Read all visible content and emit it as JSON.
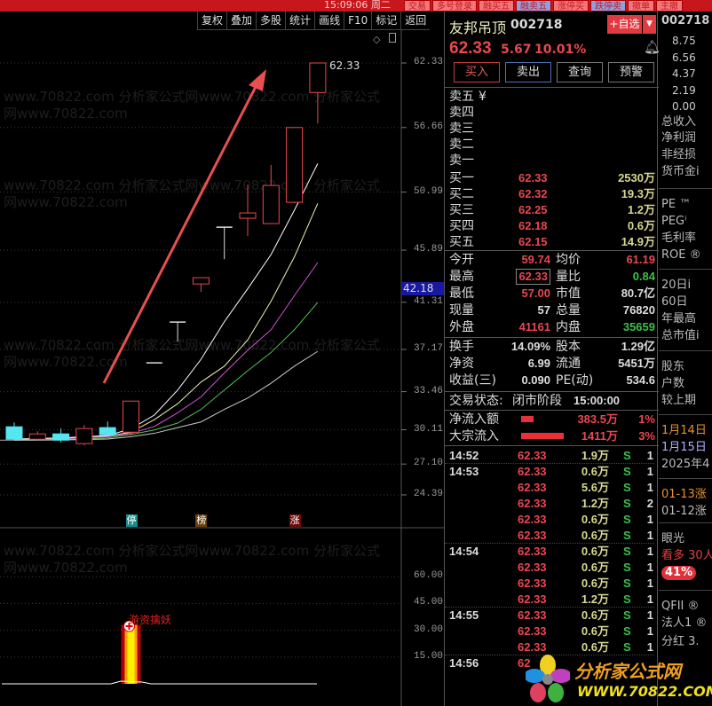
{
  "topbar": {
    "time": "15:09:06 周二",
    "tabs": [
      "交易",
      "多号登录",
      "融买五",
      "融卖五",
      "涨停买",
      "跌停卖",
      "撤单",
      "主撤"
    ]
  },
  "toolbar": [
    "复权",
    "叠加",
    "多股",
    "统计",
    "画线",
    "F10",
    "标记",
    "返回"
  ],
  "watermark": "www.70822.com 分析家公式网www.70822.com 分析家公式网www.70822.com",
  "colors": {
    "up": "#e8484f",
    "down": "#55e6f0",
    "background": "#000000",
    "arrow": "#e85050"
  },
  "chart_data": {
    "type": "candlestick",
    "price_axis_ticks": [
      "62.33",
      "56.66",
      "50.99",
      "45.89",
      "41.31",
      "37.17",
      "33.46",
      "30.11",
      "27.10",
      "24.39"
    ],
    "ylim": [
      24.39,
      62.33
    ],
    "current_price_tag": "42.18",
    "last_price_label": "62.33",
    "candles": [
      {
        "o": 30.37,
        "h": 30.76,
        "l": 29.2,
        "c": 29.28
      },
      {
        "o": 29.28,
        "h": 29.98,
        "l": 29.13,
        "c": 29.75
      },
      {
        "o": 29.75,
        "h": 30.22,
        "l": 29.0,
        "c": 29.2
      },
      {
        "o": 28.9,
        "h": 30.53,
        "l": 28.74,
        "c": 30.22
      },
      {
        "o": 30.3,
        "h": 30.84,
        "l": 29.5,
        "c": 29.67
      },
      {
        "o": 29.9,
        "h": 32.63,
        "l": 29.6,
        "c": 32.63
      },
      {
        "o": 35.99,
        "h": 35.99,
        "l": 35.99,
        "c": 35.99
      },
      {
        "o": 39.57,
        "h": 39.57,
        "l": 37.86,
        "c": 39.57
      },
      {
        "o": 42.92,
        "h": 43.47,
        "l": 42.22,
        "c": 43.47
      },
      {
        "o": 47.91,
        "h": 47.91,
        "l": 45.1,
        "c": 47.91
      },
      {
        "o": 48.69,
        "h": 51.65,
        "l": 47.13,
        "c": 49.16
      },
      {
        "o": 48.22,
        "h": 53.37,
        "l": 48.22,
        "c": 51.57
      },
      {
        "o": 50.09,
        "h": 56.66,
        "l": 50.0,
        "c": 56.66
      },
      {
        "o": 59.74,
        "h": 62.33,
        "l": 57.0,
        "c": 62.33
      }
    ],
    "ma_series": [
      {
        "color": "#ffffff",
        "values": [
          29.3,
          29.35,
          29.4,
          29.5,
          29.6,
          30.2,
          31.4,
          33.6,
          36.3,
          39.6,
          42.5,
          45.5,
          49.4,
          53.5
        ]
      },
      {
        "color": "#f0f0b0",
        "values": [
          29.25,
          29.3,
          29.35,
          29.45,
          29.55,
          29.9,
          31.0,
          32.4,
          34.3,
          35.7,
          38.0,
          41.4,
          45.3,
          50.0
        ]
      },
      {
        "color": "#d050d0",
        "values": [
          29.2,
          29.25,
          29.3,
          29.4,
          29.5,
          29.8,
          30.4,
          31.6,
          33.0,
          35.1,
          37.1,
          38.9,
          41.9,
          44.8
        ]
      },
      {
        "color": "#50c050",
        "values": [
          29.2,
          29.22,
          29.25,
          29.3,
          29.4,
          29.7,
          30.1,
          30.7,
          31.9,
          33.6,
          35.3,
          36.9,
          38.9,
          41.3
        ]
      },
      {
        "color": "#c8c8c8",
        "values": [
          29.2,
          29.2,
          29.22,
          29.25,
          29.3,
          29.5,
          29.8,
          30.3,
          30.8,
          31.9,
          32.9,
          34.2,
          35.7,
          37.0
        ]
      }
    ],
    "markers": [
      {
        "index": 5,
        "text": "停",
        "color": "#1a8a8a"
      },
      {
        "index": 8,
        "text": "榜",
        "color": "#6a4010"
      },
      {
        "index": 12,
        "text": "涨",
        "color": "#6a0a0a"
      }
    ],
    "indicator": {
      "ticks": [
        "60.00",
        "45.00",
        "30.00",
        "15.00"
      ],
      "ylim": [
        0,
        75
      ],
      "bar_index": 5,
      "bar_value": 33,
      "label": "游资擒妖"
    }
  },
  "stock": {
    "name": "友邦吊顶",
    "code": "002718",
    "watch_label": "+自选",
    "price": "62.33",
    "change": "5.67",
    "pct": "10.01%"
  },
  "actions": [
    "买入",
    "卖出",
    "查询",
    "预警"
  ],
  "sells": [
    {
      "label": "卖五",
      "extra": "¥"
    },
    {
      "label": "卖四"
    },
    {
      "label": "卖三"
    },
    {
      "label": "卖二"
    },
    {
      "label": "卖一"
    }
  ],
  "buys": [
    {
      "label": "买一",
      "price": "62.33",
      "vol": "2530万"
    },
    {
      "label": "买二",
      "price": "62.32",
      "vol": "19.3万"
    },
    {
      "label": "买三",
      "price": "62.25",
      "vol": "1.2万"
    },
    {
      "label": "买四",
      "price": "62.18",
      "vol": "0.6万"
    },
    {
      "label": "买五",
      "price": "62.15",
      "vol": "14.9万"
    }
  ],
  "quote": [
    {
      "l1": "今开",
      "v1": "59.74",
      "c1": "red",
      "l2": "均价",
      "v2": "61.19",
      "c2": "red"
    },
    {
      "l1": "最高",
      "v1": "62.33",
      "c1": "red",
      "l2": "量比",
      "v2": "0.84",
      "c2": "grn"
    },
    {
      "l1": "最低",
      "v1": "57.00",
      "c1": "red",
      "l2": "市值",
      "v2": "80.7亿",
      "c2": "wht"
    },
    {
      "l1": "现量",
      "v1": "57",
      "c1": "wht",
      "l2": "总量",
      "v2": "76820",
      "c2": "wht"
    },
    {
      "l1": "外盘",
      "v1": "41161",
      "c1": "red",
      "l2": "内盘",
      "v2": "35659",
      "c2": "grn"
    }
  ],
  "fund": [
    {
      "l1": "换手",
      "v1": "14.09%",
      "l2": "股本",
      "v2": "1.29亿"
    },
    {
      "l1": "净资",
      "v1": "6.99",
      "l2": "流通",
      "v2": "5451万"
    },
    {
      "l1": "收益(三)",
      "v1": "0.090",
      "l2": "PE(动)",
      "v2": "534.6"
    }
  ],
  "status": {
    "label": "交易状态:",
    "value": "闭市阶段",
    "time": "15:00:00"
  },
  "flows": [
    {
      "label": "净流入额",
      "value": "383.5万",
      "pct": "1%",
      "bar": 0.3
    },
    {
      "label": "大宗流入",
      "value": "1411万",
      "pct": "3%",
      "bar": 1
    }
  ],
  "ticks": [
    {
      "t": "14:52",
      "p": "62.33",
      "v": "1.9万",
      "s": "S",
      "n": "1"
    },
    {
      "t": "14:53",
      "p": "62.33",
      "v": "0.6万",
      "s": "S",
      "n": "1"
    },
    {
      "t": "",
      "p": "62.33",
      "v": "5.6万",
      "s": "S",
      "n": "1"
    },
    {
      "t": "",
      "p": "62.33",
      "v": "1.2万",
      "s": "S",
      "n": "2"
    },
    {
      "t": "",
      "p": "62.33",
      "v": "0.6万",
      "s": "S",
      "n": "1"
    },
    {
      "t": "",
      "p": "62.33",
      "v": "0.6万",
      "s": "S",
      "n": "1"
    },
    {
      "t": "14:54",
      "p": "62.33",
      "v": "0.6万",
      "s": "S",
      "n": "1"
    },
    {
      "t": "",
      "p": "62.33",
      "v": "0.6万",
      "s": "S",
      "n": "1"
    },
    {
      "t": "",
      "p": "62.33",
      "v": "0.6万",
      "s": "S",
      "n": "1"
    },
    {
      "t": "",
      "p": "62.33",
      "v": "1.2万",
      "s": "S",
      "n": "1"
    },
    {
      "t": "14:55",
      "p": "62.33",
      "v": "0.6万",
      "s": "S",
      "n": "1"
    },
    {
      "t": "",
      "p": "62.33",
      "v": "0.6万",
      "s": "S",
      "n": "1"
    },
    {
      "t": "",
      "p": "62.33",
      "v": "0.6万",
      "s": "S",
      "n": "1"
    },
    {
      "t": "14:56",
      "p": "62",
      "v": "",
      "s": "",
      "n": ""
    }
  ],
  "farcol": {
    "code": "002718",
    "axis": [
      "8.75",
      "6.56",
      "4.37",
      "2.19",
      "0.00"
    ],
    "items": [
      "总收入",
      "净利润",
      "非经损",
      "货币金i",
      "PE ™",
      "PEGⁱ",
      "毛利率",
      "ROE ®",
      "20日i",
      "60日",
      "年最高",
      "总市值i",
      "股东",
      "户数",
      "较上期",
      "1月14日",
      "1月15日",
      "2025年4",
      "01-13涨",
      "01-12涨",
      "眼光",
      "看多 30人",
      "41%",
      "QFII ®",
      "法人1 ®",
      "分红 3."
    ]
  },
  "logo": {
    "text": "分析家公式网",
    "url_text": "www.70822.com"
  }
}
